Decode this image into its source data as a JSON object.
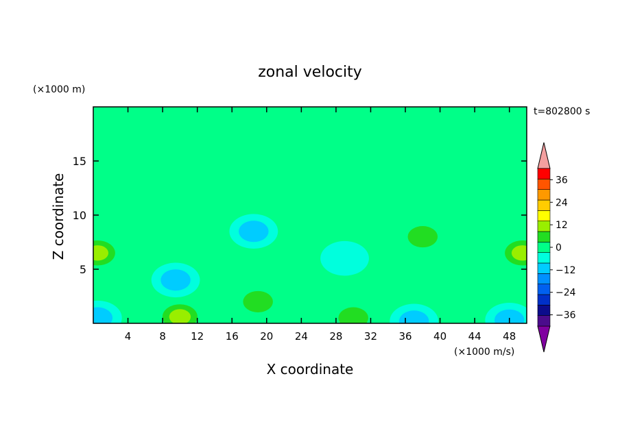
{
  "chart_data": {
    "type": "heatmap",
    "title": "zonal velocity",
    "xlabel": "X coordinate",
    "ylabel": "Z coordinate",
    "y_unit": "(×1000 m)",
    "x_unit": "(×1000 m/s)",
    "time_label": "t=802800 s",
    "xlim": [
      0,
      50
    ],
    "ylim": [
      0,
      20
    ],
    "x_ticks": [
      4,
      8,
      12,
      16,
      20,
      24,
      28,
      32,
      36,
      40,
      44,
      48
    ],
    "y_ticks": [
      5,
      10,
      15
    ],
    "colorbar": {
      "levels": [
        -42,
        -36,
        -30,
        -24,
        -18,
        -12,
        -6,
        0,
        6,
        12,
        18,
        24,
        30,
        36,
        42
      ],
      "colors": [
        "#4b0c8c",
        "#0c0c8c",
        "#0030c8",
        "#0060f0",
        "#0090ff",
        "#00ccff",
        "#00ffdd",
        "#00ff88",
        "#22dd22",
        "#99ee00",
        "#ffff00",
        "#ffcc00",
        "#ff9900",
        "#ff5500",
        "#ff0000"
      ],
      "tick_labels": [
        "36",
        "24",
        "12",
        "0",
        "−12",
        "−24",
        "−36"
      ],
      "tick_values": [
        36,
        24,
        12,
        0,
        -12,
        -24,
        -36
      ],
      "extend_low_color": "#8000a0",
      "extend_high_color": "#f4a0a0"
    },
    "grid": false,
    "features": [
      {
        "x": 10,
        "z": 0.6,
        "value": 14
      },
      {
        "x": 0.5,
        "z": 6.5,
        "value": 13
      },
      {
        "x": 49.5,
        "z": 6.5,
        "value": 13
      },
      {
        "x": 38,
        "z": 8,
        "value": 10
      },
      {
        "x": 19,
        "z": 2,
        "value": 9
      },
      {
        "x": 30,
        "z": 0.5,
        "value": 8
      },
      {
        "x": 9.5,
        "z": 4,
        "value": -9
      },
      {
        "x": 18.5,
        "z": 8.5,
        "value": -8
      },
      {
        "x": 29,
        "z": 6,
        "value": -6
      },
      {
        "x": 0.5,
        "z": 0.5,
        "value": -12
      },
      {
        "x": 48,
        "z": 0.3,
        "value": -12
      },
      {
        "x": 37,
        "z": 0.2,
        "value": -10
      },
      {
        "x": 22,
        "z": 18,
        "value": 4
      },
      {
        "x": 40,
        "z": 15.5,
        "value": 4
      }
    ]
  }
}
